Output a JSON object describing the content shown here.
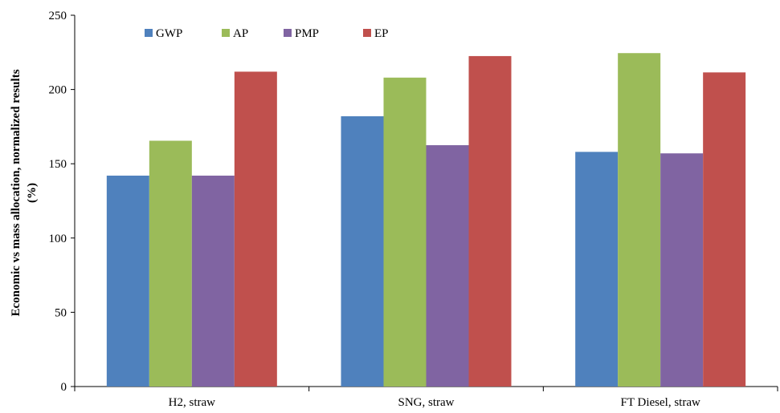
{
  "chart_data": {
    "type": "bar",
    "title": "",
    "xlabel": "",
    "ylabel_lines": [
      "Economic vs mass allocation, normalized results",
      "(%)"
    ],
    "categories": [
      "H2, straw",
      "SNG, straw",
      "FT Diesel, straw"
    ],
    "ylim": [
      0,
      250
    ],
    "yticks": [
      0,
      50,
      100,
      150,
      200,
      250
    ],
    "grid": false,
    "legend_position": "top",
    "series": [
      {
        "name": "GWP",
        "color": "#4f81bd",
        "values": [
          142,
          182,
          158
        ]
      },
      {
        "name": "AP",
        "color": "#9bbb59",
        "values": [
          165.5,
          208,
          224.5
        ]
      },
      {
        "name": "PMP",
        "color": "#8064a2",
        "values": [
          142,
          162.5,
          157
        ]
      },
      {
        "name": "EP",
        "color": "#c0504d",
        "values": [
          212,
          222.5,
          211.5
        ]
      }
    ]
  }
}
